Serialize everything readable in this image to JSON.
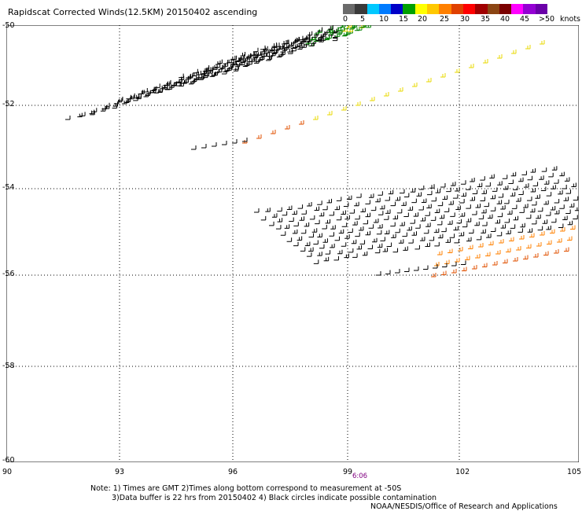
{
  "header": {
    "title": "Rapidscat Corrected Winds(12.5KM) 20150402 ascending"
  },
  "legend": {
    "unit": "knots",
    "colors": [
      "#6a6a6a",
      "#3a3a3a",
      "#00c8ff",
      "#007bff",
      "#0000c8",
      "#00a000",
      "#ffff00",
      "#ffc800",
      "#ff8000",
      "#e04000",
      "#ff0000",
      "#a00000",
      "#8b4513",
      "#7a0000",
      "#ff00ff",
      "#9400d3",
      "#6a00a8"
    ],
    "labels": [
      "0",
      "5",
      "10",
      "15",
      "20",
      "25",
      "30",
      "35",
      "40",
      "45",
      ">50"
    ]
  },
  "map": {
    "y_ticks": [
      "-50",
      "-52",
      "-54",
      "-56",
      "-58",
      "-60"
    ],
    "x_ticks": [
      "90",
      "93",
      "96",
      "99",
      "102",
      "105"
    ],
    "time_label": "6:06",
    "wind_colors": {
      "calm": "#000000",
      "light": "#008000",
      "moderate": "#e8d800",
      "fresh": "#ff8000",
      "strong": "#e05000"
    }
  },
  "notes": {
    "line1": "Note: 1) Times are GMT 2)Times along bottom correspond to measurement at -50S",
    "line2": "3)Data buffer is 22 hrs from 20150402 4) Black circles indicate possible contamination",
    "credit": "NOAA/NESDIS/Office of Research and Applications"
  }
}
